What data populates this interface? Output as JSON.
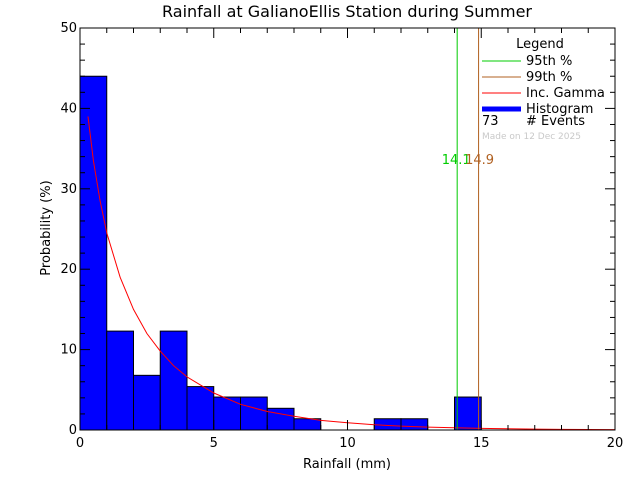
{
  "chart_data": {
    "type": "bar",
    "title": "Rainfall at GalianoEllis Station during Summer",
    "xlabel": "Rainfall (mm)",
    "ylabel": "Probability (%)",
    "xlim": [
      0,
      20
    ],
    "ylim": [
      0,
      50
    ],
    "x_ticks": [
      0,
      5,
      10,
      15,
      20
    ],
    "y_ticks": [
      0,
      10,
      20,
      30,
      40,
      50
    ],
    "bin_width": 1,
    "histogram": {
      "name": "Histogram",
      "color": "#0000ff",
      "bins": [
        {
          "x0": 0,
          "x1": 1,
          "value": 44.0
        },
        {
          "x0": 1,
          "x1": 2,
          "value": 12.3
        },
        {
          "x0": 2,
          "x1": 3,
          "value": 6.8
        },
        {
          "x0": 3,
          "x1": 4,
          "value": 12.3
        },
        {
          "x0": 4,
          "x1": 5,
          "value": 5.4
        },
        {
          "x0": 5,
          "x1": 6,
          "value": 4.1
        },
        {
          "x0": 6,
          "x1": 7,
          "value": 4.1
        },
        {
          "x0": 7,
          "x1": 8,
          "value": 2.7
        },
        {
          "x0": 8,
          "x1": 9,
          "value": 1.4
        },
        {
          "x0": 9,
          "x1": 10,
          "value": 0
        },
        {
          "x0": 10,
          "x1": 11,
          "value": 0
        },
        {
          "x0": 11,
          "x1": 12,
          "value": 1.4
        },
        {
          "x0": 12,
          "x1": 13,
          "value": 1.4
        },
        {
          "x0": 13,
          "x1": 14,
          "value": 0
        },
        {
          "x0": 14,
          "x1": 15,
          "value": 4.1
        },
        {
          "x0": 15,
          "x1": 20,
          "value": 0
        }
      ]
    },
    "gamma_curve": {
      "name": "Inc. Gamma",
      "color": "#ff0000",
      "points": [
        [
          0.3,
          39.0
        ],
        [
          0.5,
          33.5
        ],
        [
          0.75,
          28.5
        ],
        [
          1.0,
          24.5
        ],
        [
          1.5,
          19.0
        ],
        [
          2.0,
          15.0
        ],
        [
          2.5,
          12.0
        ],
        [
          3.0,
          9.8
        ],
        [
          3.5,
          8.0
        ],
        [
          4.0,
          6.6
        ],
        [
          5.0,
          4.6
        ],
        [
          6.0,
          3.2
        ],
        [
          7.0,
          2.3
        ],
        [
          8.0,
          1.7
        ],
        [
          9.0,
          1.2
        ],
        [
          10.0,
          0.9
        ],
        [
          11.0,
          0.65
        ],
        [
          12.0,
          0.48
        ],
        [
          13.0,
          0.36
        ],
        [
          14.0,
          0.27
        ],
        [
          15.0,
          0.2
        ],
        [
          16.0,
          0.15
        ],
        [
          17.0,
          0.11
        ],
        [
          18.0,
          0.08
        ],
        [
          19.0,
          0.06
        ],
        [
          20.0,
          0.05
        ]
      ]
    },
    "percentile_lines": [
      {
        "name": "95th %",
        "value": 14.1,
        "label": "14.1",
        "color": "#00cc00"
      },
      {
        "name": "99th %",
        "value": 14.9,
        "label": "14.9",
        "color": "#b06020"
      }
    ],
    "legend": {
      "title": "Legend",
      "placement": "top-right",
      "entries": [
        {
          "label": "95th %",
          "color": "#00cc00",
          "kind": "line"
        },
        {
          "label": "99th %",
          "color": "#b06020",
          "kind": "line"
        },
        {
          "label": "Inc. Gamma",
          "color": "#ff0000",
          "kind": "line"
        },
        {
          "label": "Histogram",
          "color": "#0000ff",
          "kind": "thick"
        }
      ],
      "events_count": "73",
      "events_label": "# Events",
      "made_on": "Made on 12 Dec 2025"
    }
  }
}
